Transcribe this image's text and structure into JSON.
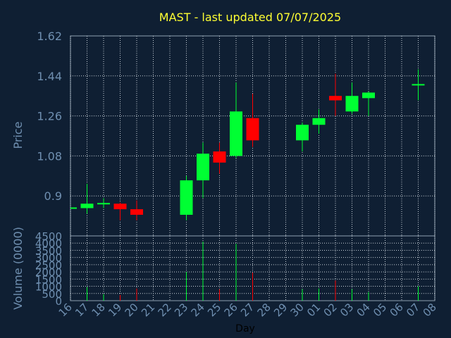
{
  "title": "MAST - last updated 07/07/2025",
  "colors": {
    "background": "#0f1f33",
    "up": "#00ff33",
    "down": "#ff0000",
    "axis_text": "#6f8fb0",
    "title": "#ffff33",
    "grid": "#c8d0d8",
    "frame": "#8fa0b0"
  },
  "chart_data": [
    {
      "type": "candlestick",
      "title": "MAST - last updated 07/07/2025",
      "xlabel": "",
      "ylabel": "Price",
      "ylim": [
        0.72,
        1.62
      ],
      "yticks": [
        "0.9",
        "1.08",
        "1.26",
        "1.44",
        "1.62"
      ],
      "grid": true,
      "categories": [
        "16",
        "17",
        "18",
        "19",
        "20",
        "21",
        "22",
        "23",
        "24",
        "25",
        "26",
        "27",
        "28",
        "29",
        "30",
        "01",
        "02",
        "03",
        "04",
        "05",
        "06",
        "07",
        "08"
      ],
      "candles": [
        {
          "day": "16",
          "open": 0.845,
          "high": 0.845,
          "low": 0.845,
          "close": 0.845
        },
        {
          "day": "17",
          "open": 0.845,
          "high": 0.955,
          "low": 0.82,
          "close": 0.865
        },
        {
          "day": "18",
          "open": 0.865,
          "high": 0.89,
          "low": 0.845,
          "close": 0.865
        },
        {
          "day": "19",
          "open": 0.865,
          "high": 0.87,
          "low": 0.79,
          "close": 0.84
        },
        {
          "day": "20",
          "open": 0.84,
          "high": 0.88,
          "low": 0.79,
          "close": 0.815
        },
        {
          "day": "23",
          "open": 0.815,
          "high": 0.99,
          "low": 0.79,
          "close": 0.97
        },
        {
          "day": "24",
          "open": 0.97,
          "high": 1.14,
          "low": 0.89,
          "close": 1.09
        },
        {
          "day": "25",
          "open": 1.1,
          "high": 1.14,
          "low": 1.0,
          "close": 1.05
        },
        {
          "day": "26",
          "open": 1.08,
          "high": 1.41,
          "low": 1.07,
          "close": 1.28
        },
        {
          "day": "27",
          "open": 1.25,
          "high": 1.36,
          "low": 1.12,
          "close": 1.15
        },
        {
          "day": "30",
          "open": 1.15,
          "high": 1.23,
          "low": 1.1,
          "close": 1.22
        },
        {
          "day": "01",
          "open": 1.22,
          "high": 1.29,
          "low": 1.18,
          "close": 1.25
        },
        {
          "day": "02",
          "open": 1.35,
          "high": 1.45,
          "low": 1.26,
          "close": 1.33
        },
        {
          "day": "03",
          "open": 1.28,
          "high": 1.41,
          "low": 1.27,
          "close": 1.35
        },
        {
          "day": "04",
          "open": 1.34,
          "high": 1.37,
          "low": 1.26,
          "close": 1.365
        },
        {
          "day": "07",
          "open": 1.4,
          "high": 1.47,
          "low": 1.33,
          "close": 1.4
        }
      ]
    },
    {
      "type": "bar",
      "xlabel": "Day",
      "ylabel": "Volume (0000)",
      "ylim": [
        0,
        4500
      ],
      "yticks": [
        "0",
        "500",
        "1000",
        "1500",
        "2000",
        "2500",
        "3000",
        "3500",
        "4000",
        "4500"
      ],
      "grid": true,
      "categories": [
        "16",
        "17",
        "18",
        "19",
        "20",
        "21",
        "22",
        "23",
        "24",
        "25",
        "26",
        "27",
        "28",
        "29",
        "30",
        "01",
        "02",
        "03",
        "04",
        "05",
        "06",
        "07",
        "08"
      ],
      "bars": [
        {
          "day": "17",
          "value": 950,
          "direction": "up"
        },
        {
          "day": "18",
          "value": 450,
          "direction": "up"
        },
        {
          "day": "19",
          "value": 400,
          "direction": "down"
        },
        {
          "day": "20",
          "value": 850,
          "direction": "down"
        },
        {
          "day": "23",
          "value": 2000,
          "direction": "up"
        },
        {
          "day": "24",
          "value": 4100,
          "direction": "up"
        },
        {
          "day": "25",
          "value": 800,
          "direction": "down"
        },
        {
          "day": "26",
          "value": 3950,
          "direction": "up"
        },
        {
          "day": "27",
          "value": 1950,
          "direction": "down"
        },
        {
          "day": "30",
          "value": 800,
          "direction": "up"
        },
        {
          "day": "01",
          "value": 850,
          "direction": "up"
        },
        {
          "day": "02",
          "value": 1400,
          "direction": "down"
        },
        {
          "day": "03",
          "value": 800,
          "direction": "up"
        },
        {
          "day": "04",
          "value": 600,
          "direction": "up"
        },
        {
          "day": "07",
          "value": 1000,
          "direction": "up"
        }
      ]
    }
  ]
}
